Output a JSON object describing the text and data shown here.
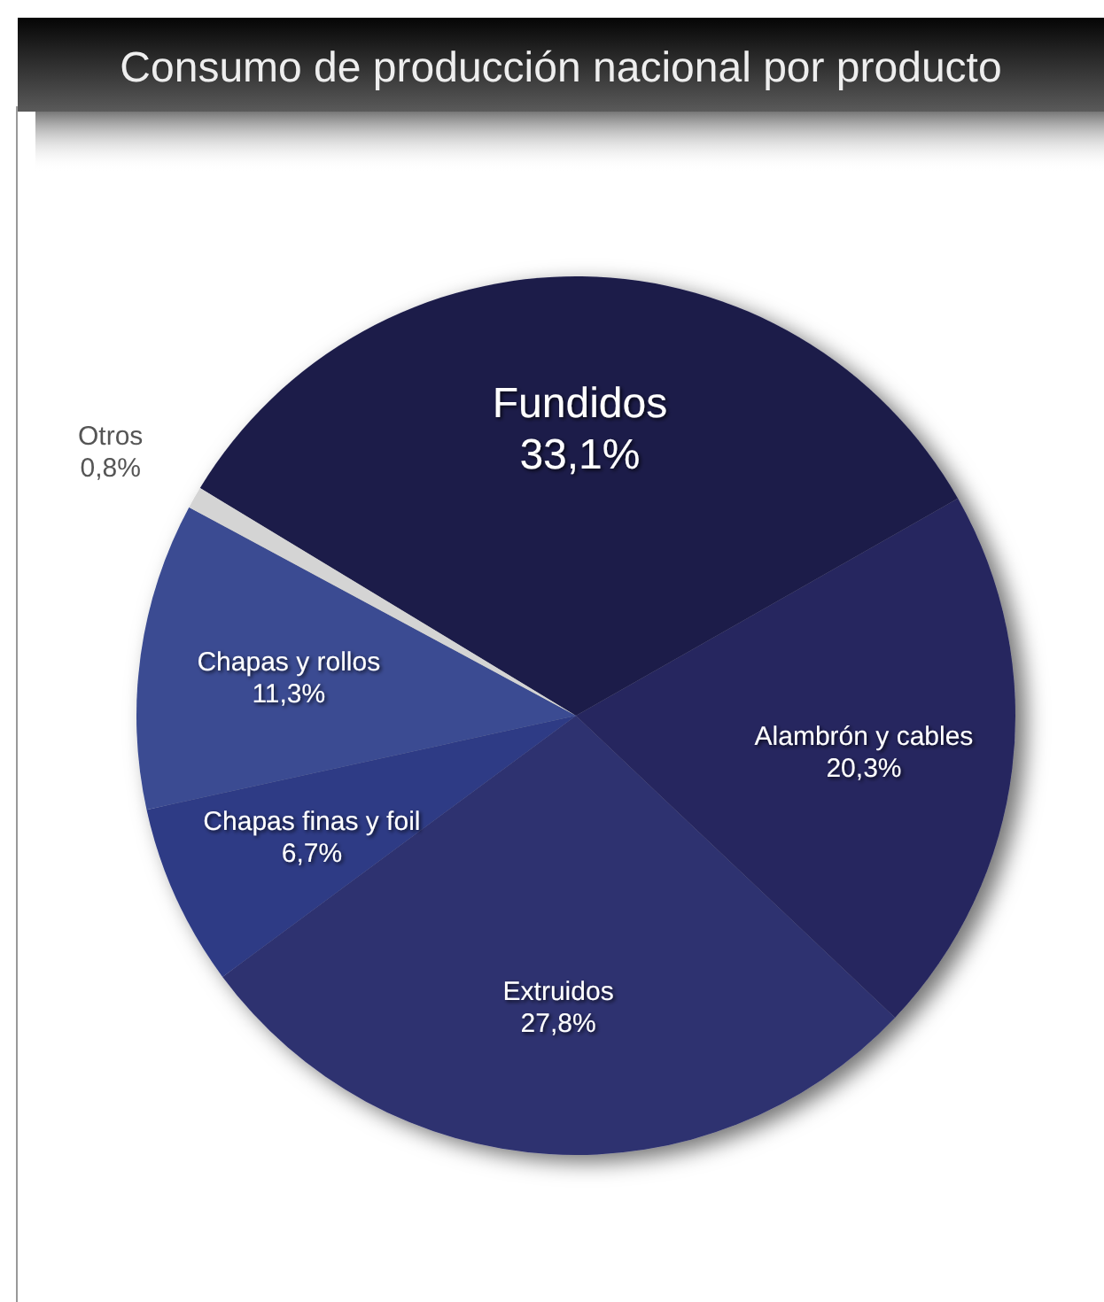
{
  "chart_data": {
    "type": "pie",
    "title": "Consumo de producción nacional por producto",
    "categories": [
      "Fundidos",
      "Alambrón y cables",
      "Extruidos",
      "Chapas finas y foil",
      "Chapas y rollos",
      "Otros"
    ],
    "values": [
      33.1,
      20.3,
      27.8,
      6.7,
      11.3,
      0.8
    ],
    "value_labels": [
      "33,1%",
      "20,3%",
      "27,8%",
      "6,7%",
      "11,3%",
      "0,8%"
    ],
    "colors": [
      "#1c1c4a",
      "#27275e",
      "#2e3170",
      "#2f3b85",
      "#3a4b92",
      "#d4d4d4"
    ]
  }
}
